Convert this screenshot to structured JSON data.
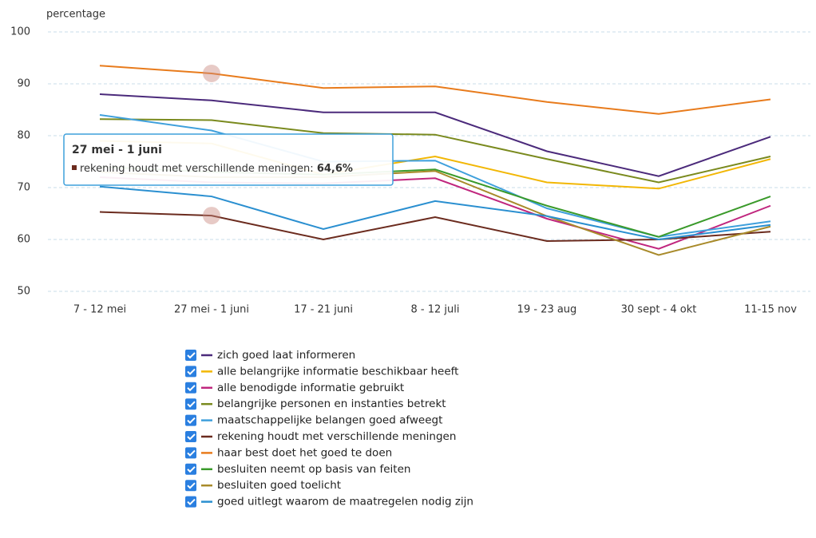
{
  "chart_data": {
    "type": "line",
    "y_label": "percentage",
    "categories": [
      "7 - 12 mei",
      "27 mei - 1 juni",
      "17 - 21 juni",
      "8 - 12 juli",
      "19 - 23 aug",
      "30 sept - 4 okt",
      "11-15 nov"
    ],
    "ylim": [
      50,
      100
    ],
    "yticks": [
      50,
      60,
      70,
      80,
      90,
      100
    ],
    "grid": true,
    "series": [
      {
        "name": "zich goed laat informeren",
        "color": "#4b2a7b",
        "values": [
          88,
          86.8,
          84.5,
          84.5,
          77,
          72.2,
          79.8
        ]
      },
      {
        "name": "alle belangrijke informatie beschikbaar heeft",
        "color": "#f2b705",
        "values": [
          79,
          78.5,
          72.5,
          76,
          71,
          69.8,
          75.5
        ]
      },
      {
        "name": "alle benodigde informatie gebruikt",
        "color": "#c0267e",
        "values": [
          72,
          71,
          70.8,
          71.8,
          64,
          58.2,
          66.5
        ]
      },
      {
        "name": "belangrijke personen en instanties betrekt",
        "color": "#7a8a1e",
        "values": [
          83.2,
          83,
          80.5,
          80.2,
          75.5,
          71,
          76
        ]
      },
      {
        "name": "maatschappelijke belangen goed afweegt",
        "color": "#3fa0dc",
        "values": [
          84,
          81,
          75,
          75.2,
          66,
          60.5,
          63.5
        ]
      },
      {
        "name": "rekening houdt met verschillende meningen",
        "color": "#6b2b1e",
        "values": [
          65.3,
          64.6,
          60,
          64.3,
          59.7,
          60,
          61.5
        ]
      },
      {
        "name": "haar best doet het goed te doen",
        "color": "#e87b1c",
        "values": [
          93.5,
          92,
          89.2,
          89.5,
          86.5,
          84.2,
          87
        ]
      },
      {
        "name": "besluiten neemt op basis van feiten",
        "color": "#3a9a2a",
        "values": [
          74,
          73,
          72.5,
          73.5,
          66.5,
          60.5,
          68.3
        ]
      },
      {
        "name": "besluiten goed toelicht",
        "color": "#a88a2a",
        "values": [
          73,
          72,
          72,
          73.2,
          64.5,
          57,
          62.5
        ]
      },
      {
        "name": "goed uitlegt waarom de maatregelen nodig zijn",
        "color": "#2a8fd0",
        "values": [
          70.2,
          68.3,
          62,
          67.4,
          64.5,
          60,
          62.8
        ]
      }
    ],
    "tooltip": {
      "label": "rekening houdt met verschillende meningen:",
      "value": "64,6%"
    }
  }
}
